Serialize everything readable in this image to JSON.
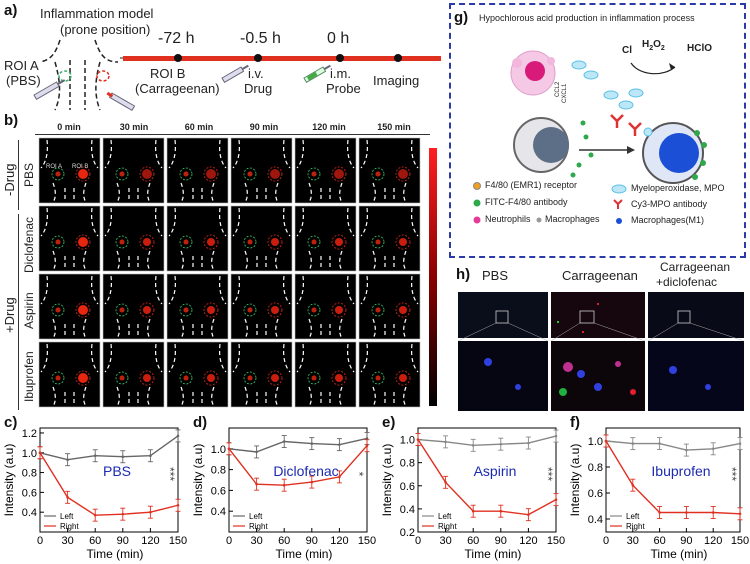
{
  "panel_labels": {
    "a": "a)",
    "b": "b)",
    "c": "c)",
    "d": "d)",
    "e": "e)",
    "f": "f)",
    "g": "g)",
    "h": "h)"
  },
  "panel_a": {
    "model_title": "Inflammation model",
    "model_subtitle": "(prone position)",
    "roi_a": "ROI A",
    "roi_a_sub": "(PBS)",
    "timeline": [
      {
        "time": "-72 h",
        "event": "ROI B",
        "event_sub": "(Carrageenan)"
      },
      {
        "time": "-0.5 h",
        "event": "i.v.",
        "event_sub": "Drug"
      },
      {
        "time": "0 h",
        "event": "i.m.",
        "event_sub": "Probe"
      },
      {
        "time": "",
        "event": "Imaging",
        "event_sub": ""
      }
    ]
  },
  "panel_b": {
    "times": [
      "0 min",
      "30 min",
      "60 min",
      "90 min",
      "120 min",
      "150 min"
    ],
    "rows": [
      "PBS",
      "Diclofenac",
      "Aspirin",
      "Ibuprofen"
    ],
    "group_minus": "-Drug",
    "group_plus": "+Drug",
    "roi_a": "ROI A",
    "roi_b": "ROI B"
  },
  "panel_g": {
    "title": "Hypochlorous acid production in inflammation process",
    "cl": "Cl",
    "h2o2": "H",
    "h2o2_2": "O",
    "hclo": "HClO",
    "ccl2": "CCL2",
    "cxcl1": "CXCL1",
    "legend": [
      {
        "label": "F4/80 (EMR1) receptor"
      },
      {
        "label": "Myeloperoxidase, MPO"
      },
      {
        "label": "FITC-F4/80 antibody"
      },
      {
        "label": "Cy3-MPO antibody"
      },
      {
        "label": "Neutrophils"
      },
      {
        "label": "Macrophages"
      },
      {
        "label": "Macrophages(M1)"
      }
    ]
  },
  "panel_h": {
    "columns": [
      "PBS",
      "Carrageenan",
      "Carrageenan"
    ],
    "column3_sub": "+diclofenac"
  },
  "chart_data": [
    {
      "type": "line",
      "id": "c",
      "title": "PBS",
      "xlabel": "Time (min)",
      "ylabel": "Intensity (a.u)",
      "x": [
        0,
        30,
        60,
        90,
        120,
        150
      ],
      "ylim": [
        0.2,
        1.25
      ],
      "yticks": [
        0.4,
        0.6,
        0.8,
        1.0,
        1.2
      ],
      "xticks": [
        0,
        30,
        60,
        90,
        120,
        150
      ],
      "series": [
        {
          "name": "Left",
          "color": "#666666",
          "values": [
            1.0,
            0.93,
            0.97,
            0.96,
            0.97,
            1.17
          ]
        },
        {
          "name": "Right",
          "color": "#e03020",
          "values": [
            1.0,
            0.55,
            0.37,
            0.38,
            0.4,
            0.47
          ]
        }
      ],
      "annotation": "***"
    },
    {
      "type": "line",
      "id": "d",
      "title": "Diclofenac",
      "xlabel": "Time (min)",
      "ylabel": "Intensity (a.u)",
      "x": [
        0,
        30,
        60,
        90,
        120,
        150
      ],
      "ylim": [
        0.2,
        1.2
      ],
      "yticks": [
        0.4,
        0.6,
        0.8,
        1.0
      ],
      "xticks": [
        0,
        30,
        60,
        90,
        120,
        150
      ],
      "series": [
        {
          "name": "Left",
          "color": "#666666",
          "values": [
            1.0,
            0.97,
            1.07,
            1.05,
            1.04,
            1.1
          ]
        },
        {
          "name": "Right",
          "color": "#e03020",
          "values": [
            1.0,
            0.66,
            0.65,
            0.68,
            0.73,
            1.03
          ]
        }
      ],
      "annotation": "*"
    },
    {
      "type": "line",
      "id": "e",
      "title": "Aspirin",
      "xlabel": "Time (min)",
      "ylabel": "Intensity (a.u)",
      "x": [
        0,
        30,
        60,
        90,
        120,
        150
      ],
      "ylim": [
        0.2,
        1.1
      ],
      "yticks": [
        0.2,
        0.4,
        0.6,
        0.8,
        1.0
      ],
      "xticks": [
        0,
        30,
        60,
        90,
        120,
        150
      ],
      "series": [
        {
          "name": "Left",
          "color": "#888888",
          "values": [
            1.0,
            0.98,
            0.95,
            0.96,
            0.97,
            1.03
          ]
        },
        {
          "name": "Right",
          "color": "#e03020",
          "values": [
            1.0,
            0.63,
            0.38,
            0.38,
            0.35,
            0.48
          ]
        }
      ],
      "annotation": "***"
    },
    {
      "type": "line",
      "id": "f",
      "title": "Ibuprofen",
      "xlabel": "Time (min)",
      "ylabel": "Intensity (a.u)",
      "x": [
        0,
        30,
        60,
        90,
        120,
        150
      ],
      "ylim": [
        0.3,
        1.1
      ],
      "yticks": [
        0.4,
        0.6,
        0.8,
        1.0
      ],
      "xticks": [
        0,
        30,
        60,
        90,
        120,
        150
      ],
      "series": [
        {
          "name": "Left",
          "color": "#888888",
          "values": [
            1.0,
            0.98,
            0.98,
            0.93,
            0.94,
            0.98
          ]
        },
        {
          "name": "Right",
          "color": "#e03020",
          "values": [
            1.0,
            0.66,
            0.45,
            0.45,
            0.45,
            0.44
          ]
        }
      ],
      "annotation": "***"
    }
  ],
  "legend_labels": {
    "left": "Left",
    "right": "Right"
  }
}
